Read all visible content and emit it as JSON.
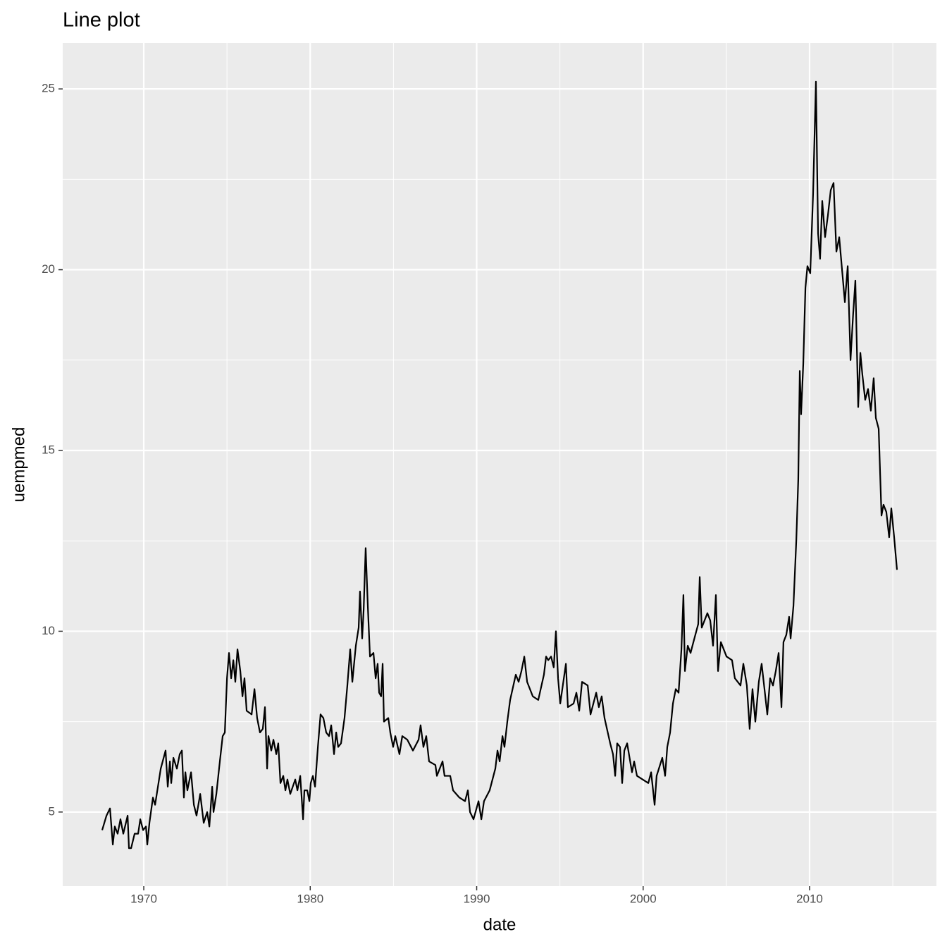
{
  "chart_data": {
    "type": "line",
    "title": "Line plot",
    "x_label": "date",
    "y_label": "uempmed",
    "xlim": [
      1965.13,
      2017.62
    ],
    "ylim": [
      2.95,
      26.27
    ],
    "xticks": [
      1970,
      1980,
      1990,
      2000,
      2010
    ],
    "yticks": [
      5,
      10,
      15,
      20,
      25
    ],
    "grid": true,
    "x": [
      1967.5,
      1967.76,
      1967.97,
      1968.14,
      1968.26,
      1968.43,
      1968.6,
      1968.77,
      1969.03,
      1969.11,
      1969.24,
      1969.45,
      1969.66,
      1969.79,
      1969.96,
      1970.13,
      1970.21,
      1970.34,
      1970.55,
      1970.68,
      1971.02,
      1971.31,
      1971.44,
      1971.57,
      1971.65,
      1971.78,
      1971.99,
      1972.16,
      1972.29,
      1972.41,
      1972.5,
      1972.62,
      1972.84,
      1973.01,
      1973.17,
      1973.39,
      1973.6,
      1973.81,
      1973.94,
      1974.11,
      1974.19,
      1974.36,
      1974.57,
      1974.74,
      1974.87,
      1975.0,
      1975.12,
      1975.25,
      1975.38,
      1975.5,
      1975.63,
      1975.8,
      1975.93,
      1976.05,
      1976.18,
      1976.48,
      1976.65,
      1976.81,
      1976.98,
      1977.15,
      1977.28,
      1977.41,
      1977.49,
      1977.66,
      1977.79,
      1977.96,
      1978.08,
      1978.21,
      1978.38,
      1978.51,
      1978.63,
      1978.8,
      1979.1,
      1979.23,
      1979.4,
      1979.57,
      1979.65,
      1979.82,
      1979.95,
      1980.03,
      1980.16,
      1980.29,
      1980.46,
      1980.62,
      1980.79,
      1980.96,
      1981.13,
      1981.26,
      1981.43,
      1981.56,
      1981.68,
      1981.85,
      1982.06,
      1982.23,
      1982.4,
      1982.53,
      1982.74,
      1982.91,
      1982.99,
      1983.12,
      1983.21,
      1983.33,
      1983.46,
      1983.59,
      1983.8,
      1983.93,
      1984.05,
      1984.14,
      1984.26,
      1984.35,
      1984.43,
      1984.69,
      1984.81,
      1984.98,
      1985.11,
      1985.36,
      1985.53,
      1985.83,
      1986.17,
      1986.51,
      1986.63,
      1986.8,
      1986.97,
      1987.14,
      1987.52,
      1987.61,
      1987.95,
      1988.07,
      1988.41,
      1988.58,
      1988.96,
      1989.3,
      1989.47,
      1989.6,
      1989.81,
      1990.11,
      1990.28,
      1990.44,
      1990.78,
      1991.12,
      1991.25,
      1991.38,
      1991.55,
      1991.67,
      1991.84,
      1992.01,
      1992.35,
      1992.52,
      1992.69,
      1992.86,
      1993.03,
      1993.37,
      1993.7,
      1994.04,
      1994.17,
      1994.3,
      1994.47,
      1994.63,
      1994.76,
      1994.89,
      1995.02,
      1995.36,
      1995.48,
      1995.82,
      1995.99,
      1996.16,
      1996.33,
      1996.67,
      1996.84,
      1997.18,
      1997.34,
      1997.51,
      1997.68,
      1998.02,
      1998.19,
      1998.32,
      1998.44,
      1998.61,
      1998.74,
      1998.87,
      1999.04,
      1999.33,
      1999.46,
      1999.63,
      1999.97,
      2000.31,
      2000.48,
      2000.69,
      2000.81,
      2001.15,
      2001.32,
      2001.45,
      2001.62,
      2001.79,
      2001.96,
      2002.13,
      2002.3,
      2002.42,
      2002.51,
      2002.68,
      2002.85,
      2003.02,
      2003.31,
      2003.4,
      2003.52,
      2003.86,
      2004.03,
      2004.2,
      2004.37,
      2004.5,
      2004.67,
      2005.01,
      2005.34,
      2005.51,
      2005.85,
      2006.02,
      2006.23,
      2006.4,
      2006.57,
      2006.74,
      2006.95,
      2007.12,
      2007.29,
      2007.46,
      2007.63,
      2007.8,
      2007.97,
      2008.14,
      2008.31,
      2008.43,
      2008.6,
      2008.77,
      2008.86,
      2009.03,
      2009.2,
      2009.32,
      2009.41,
      2009.49,
      2009.62,
      2009.75,
      2009.87,
      2010.04,
      2010.21,
      2010.38,
      2010.51,
      2010.63,
      2010.76,
      2010.93,
      2011.1,
      2011.27,
      2011.44,
      2011.61,
      2011.78,
      2011.95,
      2012.12,
      2012.29,
      2012.46,
      2012.62,
      2012.75,
      2012.92,
      2013.05,
      2013.17,
      2013.34,
      2013.51,
      2013.68,
      2013.85,
      2013.98,
      2014.15,
      2014.32,
      2014.44,
      2014.61,
      2014.78,
      2014.91,
      2015.08,
      2015.25
    ],
    "series": [
      {
        "color": "#000000",
        "values": [
          4.5,
          4.9,
          5.1,
          4.1,
          4.6,
          4.4,
          4.8,
          4.4,
          4.9,
          4.0,
          4.0,
          4.4,
          4.4,
          4.8,
          4.5,
          4.6,
          4.1,
          4.7,
          5.4,
          5.2,
          6.2,
          6.7,
          5.7,
          6.4,
          5.8,
          6.5,
          6.2,
          6.6,
          6.7,
          5.4,
          6.1,
          5.6,
          6.1,
          5.2,
          4.9,
          5.5,
          4.7,
          5.0,
          4.6,
          5.7,
          5.0,
          5.5,
          6.4,
          7.1,
          7.2,
          8.7,
          9.4,
          8.7,
          9.2,
          8.6,
          9.5,
          8.9,
          8.2,
          8.7,
          7.8,
          7.7,
          8.4,
          7.6,
          7.2,
          7.3,
          7.9,
          6.2,
          7.1,
          6.7,
          7.0,
          6.6,
          6.9,
          5.8,
          6.0,
          5.6,
          5.9,
          5.5,
          5.9,
          5.6,
          6.0,
          4.8,
          5.6,
          5.6,
          5.3,
          5.8,
          6.0,
          5.7,
          6.8,
          7.7,
          7.6,
          7.2,
          7.1,
          7.4,
          6.6,
          7.2,
          6.8,
          6.9,
          7.6,
          8.5,
          9.5,
          8.6,
          9.6,
          10.1,
          11.1,
          9.8,
          10.6,
          12.3,
          10.7,
          9.3,
          9.4,
          8.7,
          9.1,
          8.3,
          8.2,
          9.1,
          7.5,
          7.6,
          7.2,
          6.8,
          7.1,
          6.6,
          7.1,
          7.0,
          6.7,
          7.0,
          7.4,
          6.8,
          7.1,
          6.4,
          6.3,
          6.0,
          6.4,
          6.0,
          6.0,
          5.6,
          5.4,
          5.3,
          5.6,
          5.0,
          4.8,
          5.3,
          4.8,
          5.3,
          5.6,
          6.2,
          6.7,
          6.4,
          7.1,
          6.8,
          7.5,
          8.1,
          8.8,
          8.6,
          8.9,
          9.3,
          8.6,
          8.2,
          8.1,
          8.8,
          9.3,
          9.2,
          9.3,
          9.0,
          10.0,
          8.7,
          8.0,
          9.1,
          7.9,
          8.0,
          8.3,
          7.8,
          8.6,
          8.5,
          7.7,
          8.3,
          7.9,
          8.2,
          7.6,
          6.9,
          6.6,
          6.0,
          6.9,
          6.8,
          5.8,
          6.7,
          6.9,
          6.1,
          6.4,
          6.0,
          5.9,
          5.8,
          6.1,
          5.2,
          6.0,
          6.5,
          6.0,
          6.8,
          7.2,
          8.0,
          8.4,
          8.3,
          9.5,
          11.0,
          8.9,
          9.6,
          9.4,
          9.7,
          10.2,
          11.5,
          10.1,
          10.5,
          10.3,
          9.6,
          11.0,
          8.9,
          9.7,
          9.3,
          9.2,
          8.7,
          8.5,
          9.1,
          8.5,
          7.3,
          8.4,
          7.5,
          8.6,
          9.1,
          8.4,
          7.7,
          8.7,
          8.5,
          8.9,
          9.4,
          7.9,
          9.7,
          9.9,
          10.4,
          9.8,
          10.7,
          12.5,
          14.2,
          17.2,
          16.0,
          17.4,
          19.5,
          20.1,
          19.9,
          22.1,
          25.2,
          21.0,
          20.3,
          21.9,
          20.9,
          21.5,
          22.2,
          22.4,
          20.5,
          20.9,
          20.0,
          19.1,
          20.1,
          17.5,
          18.8,
          19.7,
          16.2,
          17.7,
          17.1,
          16.4,
          16.7,
          16.1,
          17.0,
          15.9,
          15.6,
          13.2,
          13.5,
          13.3,
          12.6,
          13.4,
          12.6,
          11.7
        ]
      }
    ]
  }
}
